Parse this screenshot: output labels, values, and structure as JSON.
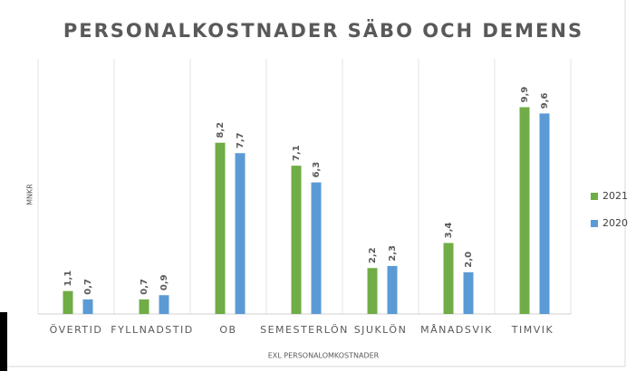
{
  "chart_data": {
    "type": "bar",
    "title": "PERSONALKOSTNADER SÄBO OCH DEMENS",
    "x_label": "EXL PERSONALOMKOSTNADER",
    "y_label": "MNKR",
    "categories": [
      "ÖVERTID",
      "FYLLNADSTID",
      "OB",
      "SEMESTERLÖN",
      "SJUKLÖN",
      "MÅNADSVIK",
      "TIMVIK"
    ],
    "series": [
      {
        "name": "2021",
        "color": "#70ad47",
        "values": [
          1.1,
          0.7,
          8.2,
          7.1,
          2.2,
          3.4,
          9.9
        ],
        "value_labels": [
          "1,1",
          "0,7",
          "8,2",
          "7,1",
          "2,2",
          "3,4",
          "9,9"
        ]
      },
      {
        "name": "2020",
        "color": "#5b9bd5",
        "values": [
          0.7,
          0.9,
          7.7,
          6.3,
          2.3,
          2.0,
          9.6
        ],
        "value_labels": [
          "0,7",
          "0,9",
          "7,7",
          "6,3",
          "2,3",
          "2,0",
          "9,6"
        ]
      }
    ],
    "ylim": [
      0,
      12
    ],
    "legend": "right"
  }
}
